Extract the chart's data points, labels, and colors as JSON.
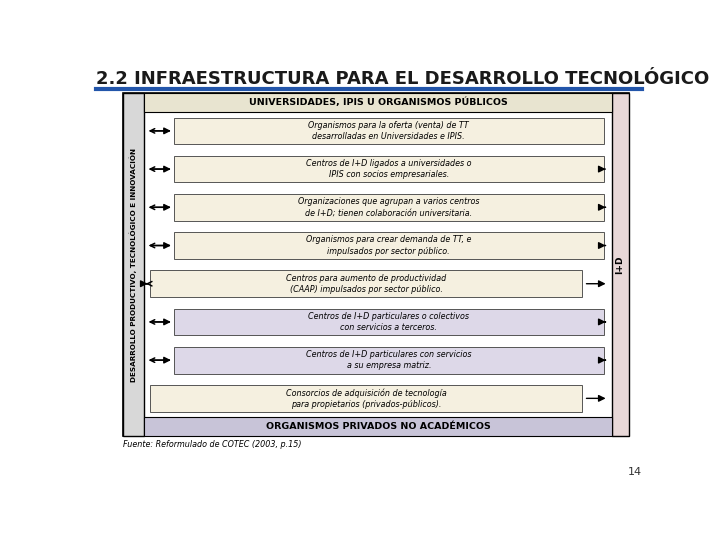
{
  "title": "2.2 INFRAESTRUCTURA PARA EL DESARROLLO TECNOLÓGICO",
  "title_fontsize": 13,
  "title_color": "#1a1a1a",
  "title_underline_color": "#2255aa",
  "background_color": "#ffffff",
  "page_number": "14",
  "source_text": "Fuente: Reformulado de COTEC (2003, p.15)",
  "left_label": "DESARROLLO PRODUCTIVO, TECNOLÓGICO E INNOVACIÓN",
  "right_label": "I+D",
  "top_box_text": "UNIVERSIDADES, IPIS U ORGANISMOS PÚBLICOS",
  "bottom_box_text": "ORGANISMOS PRIVADOS NO ACADÉMICOS",
  "top_box_color": "#e8e4d0",
  "bottom_box_color": "#c8c4d8",
  "left_sidebar_color": "#d8d8d8",
  "right_sidebar_color": "#e8d8d8",
  "outer_border_color": "#000000",
  "boxes": [
    {
      "text": "Organismos para la oferta (venta) de TT\ndesarrolladas en Universidades e IPIS.",
      "color": "#f5f0e0",
      "arrow_left": true,
      "arrow_right": false,
      "indent": "right"
    },
    {
      "text": "Centros de I+D ligados a universidades o\nIPIS con socios empresariales.",
      "color": "#f5f0e0",
      "arrow_left": true,
      "arrow_right": true,
      "indent": "right"
    },
    {
      "text": "Organizaciones que agrupan a varios centros\nde I+D; tienen colaboración universitaria.",
      "color": "#f5f0e0",
      "arrow_left": true,
      "arrow_right": true,
      "indent": "right"
    },
    {
      "text": "Organismos para crear demanda de TT, e\nimpulsados por sector público.",
      "color": "#f5f0e0",
      "arrow_left": true,
      "arrow_right": true,
      "indent": "right"
    },
    {
      "text": "Centros para aumento de productividad\n(CAAP) impulsados por sector público.",
      "color": "#f5f0e0",
      "arrow_left": true,
      "arrow_right": true,
      "indent": "left"
    },
    {
      "text": "Centros de I+D particulares o colectivos\ncon servicios a terceros.",
      "color": "#ddd8e8",
      "arrow_left": true,
      "arrow_right": true,
      "indent": "right"
    },
    {
      "text": "Centros de I+D particulares con servicios\na su empresa matriz.",
      "color": "#ddd8e8",
      "arrow_left": true,
      "arrow_right": true,
      "indent": "right"
    },
    {
      "text": "Consorcios de adquisición de tecnología\npara propietarios (privados-públicos).",
      "color": "#f5f0e0",
      "arrow_left": false,
      "arrow_right": true,
      "indent": "left"
    }
  ]
}
